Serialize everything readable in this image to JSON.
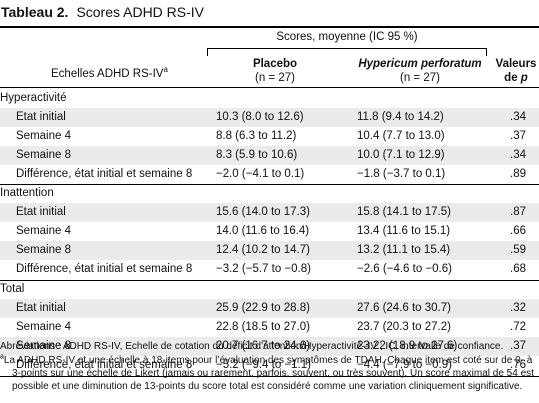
{
  "title": {
    "label": "Tableau 2.",
    "text": "Scores ADHD RS-IV"
  },
  "header": {
    "group": "Scores, moyenne (IC 95 %)",
    "col1": "Echelles ADHD RS-IV",
    "col1_sup": "a",
    "col2_line1": "Placebo",
    "col2_line2": "(n = 27)",
    "col3_line1": "Hypericum perforatum",
    "col3_line2": "(n = 27)",
    "col4_line1": "Valeurs",
    "col4_line2_prefix": "de",
    "col4_line2_italic": "p"
  },
  "rows": [
    {
      "type": "section",
      "label": "Hyperactivité"
    },
    {
      "type": "data",
      "label": "Etat initial",
      "placebo": "10.3 (8.0 to 12.6)",
      "hyp": "11.8 (9.4 to 14.2)",
      "p": ".34"
    },
    {
      "type": "data",
      "label": "Semaine 4",
      "placebo": "8.8 (6.3 to 11.2)",
      "hyp": "10.4 (7.7 to 13.0)",
      "p": ".37"
    },
    {
      "type": "data",
      "label": "Semaine 8",
      "placebo": "8.3 (5.9 to 10.6)",
      "hyp": "10.0 (7.1 to 12.9)",
      "p": ".34"
    },
    {
      "type": "data",
      "label": "Différence, état initial et semaine 8",
      "placebo": "−2.0 (−4.1 to 0.1)",
      "hyp": "−1.8 (−3.7 to 0.1)",
      "p": ".89"
    },
    {
      "type": "section",
      "label": "Inattention"
    },
    {
      "type": "data",
      "label": "Etat initial",
      "placebo": "15.6 (14.0 to 17.3)",
      "hyp": "15.8 (14.1 to 17.5)",
      "p": ".87"
    },
    {
      "type": "data",
      "label": "Semaine 4",
      "placebo": "14.0 (11.6 to 16.4)",
      "hyp": "13.4 (11.6 to 15.1)",
      "p": ".66"
    },
    {
      "type": "data",
      "label": "Semaine 8",
      "placebo": "12.4 (10.2 to 14.7)",
      "hyp": "13.2 (11.1 to 15.4)",
      "p": ".59"
    },
    {
      "type": "data",
      "label": "Différence, état initial et semaine 8",
      "placebo": "−3.2 (−5.7 to −0.8)",
      "hyp": "−2.6 (−4.6 to −0.6)",
      "p": ".68"
    },
    {
      "type": "section",
      "label": "Total"
    },
    {
      "type": "data",
      "label": "Etat initial",
      "placebo": "25.9 (22.9 to 28.8)",
      "hyp": "27.6 (24.6 to 30.7)",
      "p": ".32"
    },
    {
      "type": "data",
      "label": "Semaine 4",
      "placebo": "22.8 (18.5 to 27.0)",
      "hyp": "23.7 (20.3 to 27.2)",
      "p": ".72"
    },
    {
      "type": "data",
      "label": "Semaine 8",
      "placebo": "20.7 (16.7 to 24.6)",
      "hyp": "23.22 (18.9 to 27.6)",
      "p": ".37"
    },
    {
      "type": "data",
      "label": "Différence, état initial et semaine 8",
      "placebo": "−5.2 (−9.4 to −1.1)",
      "hyp": "−4.4 (−7.9 to −0.9)",
      "p": ".76"
    }
  ],
  "footnotes": {
    "abbrev": "Abréviations : ADHD RS-IV, Echelle de cotation du déficit d’attention/Hyperactivité–IV ; IC, intervalle de confiance.",
    "a_marker": "a",
    "a_line1": "La ADHD RS-IV et une échelle à 18-items pour l’évaluation des symptômes de TDAH. Chaque item est coté sur de 0- à",
    "a_line2": "3-points sur une échelle de Likert (jamais ou rarement, parfois, souvent, ou très souvent). Un score maximal de 54 est",
    "a_line3": "possible et une diminution de 13-points du score total est considéré comme une variation cliniquement significative."
  }
}
